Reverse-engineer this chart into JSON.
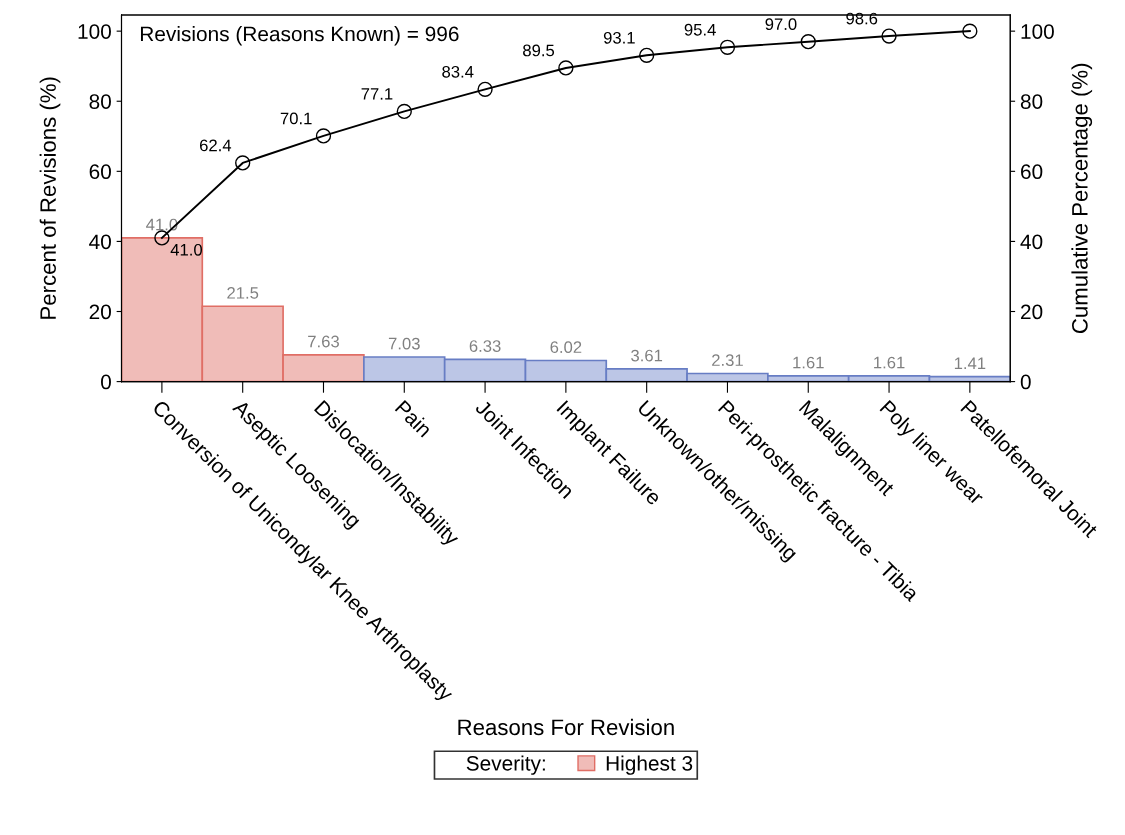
{
  "chart_data": {
    "type": "bar",
    "categories": [
      "Conversion of Unicondylar Knee Arthroplasty",
      "Aseptic Loosening",
      "Dislocation/Instability",
      "Pain",
      "Joint Infection",
      "Implant Failure",
      "Unknown/other/missing",
      "Peri-prosthetic fracture - Tibia",
      "Malalignment",
      "Poly liner wear",
      "Patellofemoral Joint"
    ],
    "xlabel": "Reasons For Revision",
    "ylabel": "Percent of Revisions (%)",
    "y2label": "Cumulative Percentage (%)",
    "legend_title": "Severity:",
    "legend": "bottom",
    "annotations": [
      "Revisions (Reasons Known) = 996"
    ],
    "series": [
      {
        "name": "Highest 3",
        "color": "#f0bcb8",
        "values": [
          41.0,
          21.5,
          7.63,
          null,
          null,
          null,
          null,
          null,
          null,
          null,
          null
        ],
        "value_labels": [
          "41.0",
          "21.5",
          "7.63",
          null,
          null,
          null,
          null,
          null,
          null,
          null,
          null
        ]
      },
      {
        "color": "#bcc6e6",
        "values": [
          null,
          null,
          null,
          7.03,
          6.33,
          6.02,
          3.61,
          2.31,
          1.61,
          1.61,
          1.41
        ],
        "value_labels": [
          null,
          null,
          null,
          "7.03",
          "6.33",
          "6.02",
          "3.61",
          "2.31",
          "1.61",
          "1.61",
          "1.41"
        ]
      },
      {
        "type": "line",
        "axis": "y2",
        "color": "#000000",
        "marker": "circle",
        "values": [
          41.0,
          62.4,
          70.1,
          77.1,
          83.4,
          89.5,
          93.1,
          95.4,
          97.0,
          98.6,
          100
        ],
        "value_labels": [
          "41.0",
          "62.4",
          "70.1",
          "77.1",
          "83.4",
          "89.5",
          "93.1",
          "95.4",
          "97.0",
          "98.6",
          null
        ]
      }
    ],
    "ylim": [
      0,
      104.6
    ],
    "yticks": [
      0,
      20,
      40,
      60,
      80,
      100
    ],
    "y2lim": [
      0,
      104.6
    ],
    "y2ticks": [
      0,
      20,
      40,
      60,
      80,
      100
    ],
    "grid": false
  }
}
